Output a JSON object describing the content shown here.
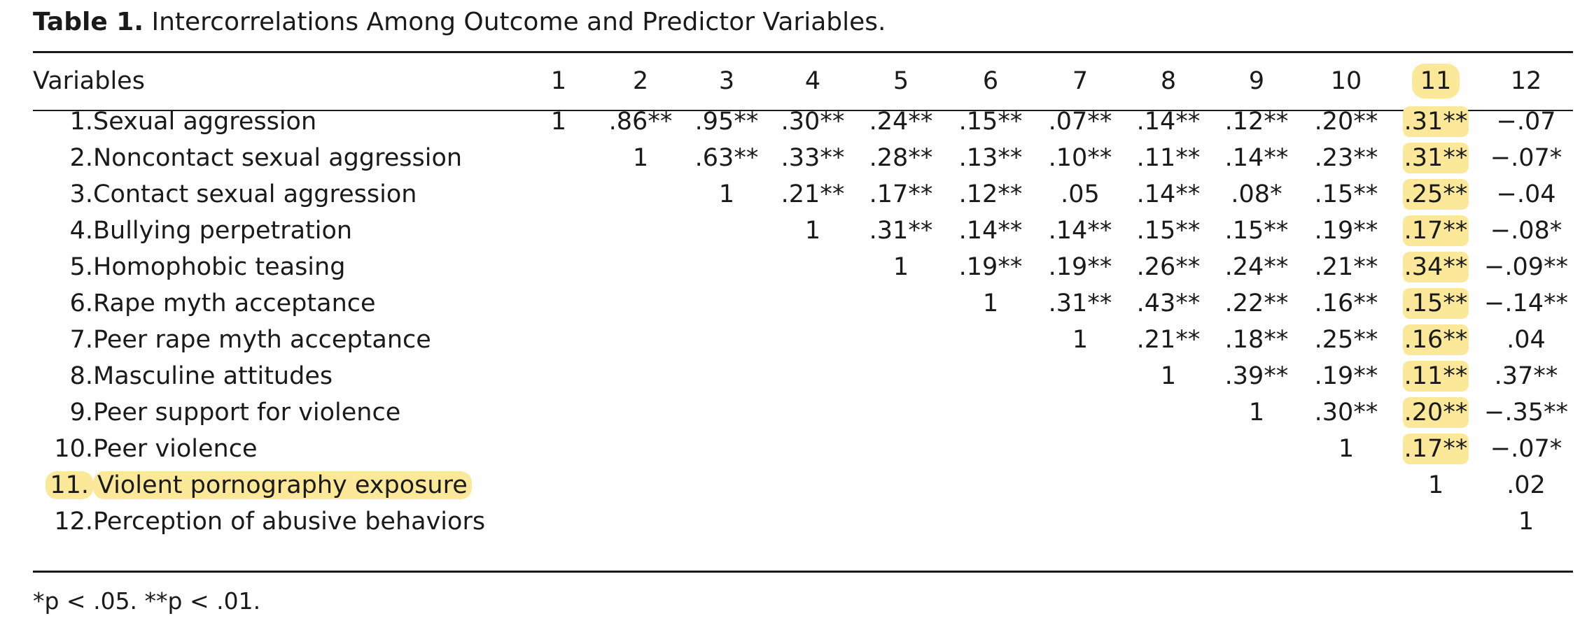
{
  "caption": {
    "label": "Table 1.",
    "title": "Intercorrelations Among Outcome and Predictor Variables."
  },
  "table": {
    "variables_header": "Variables",
    "column_headers": [
      "1",
      "2",
      "3",
      "4",
      "5",
      "6",
      "7",
      "8",
      "9",
      "10",
      "11",
      "12"
    ],
    "highlighted_column": 11,
    "highlighted_row": 11,
    "highlight_color": "#fbe898",
    "rows": [
      {
        "num": "1.",
        "name": "Sexual aggression",
        "cells": [
          "1",
          ".86**",
          ".95**",
          ".30**",
          ".24**",
          ".15**",
          ".07**",
          ".14**",
          ".12**",
          ".20**",
          ".31**",
          "−.07"
        ]
      },
      {
        "num": "2.",
        "name": "Noncontact sexual aggression",
        "cells": [
          "",
          "1",
          ".63**",
          ".33**",
          ".28**",
          ".13**",
          ".10**",
          ".11**",
          ".14**",
          ".23**",
          ".31**",
          "−.07*"
        ]
      },
      {
        "num": "3.",
        "name": "Contact sexual aggression",
        "cells": [
          "",
          "",
          "1",
          ".21**",
          ".17**",
          ".12**",
          ".05",
          ".14**",
          ".08*",
          ".15**",
          ".25**",
          "−.04"
        ]
      },
      {
        "num": "4.",
        "name": "Bullying perpetration",
        "cells": [
          "",
          "",
          "",
          "1",
          ".31**",
          ".14**",
          ".14**",
          ".15**",
          ".15**",
          ".19**",
          ".17**",
          "−.08*"
        ]
      },
      {
        "num": "5.",
        "name": "Homophobic teasing",
        "cells": [
          "",
          "",
          "",
          "",
          "1",
          ".19**",
          ".19**",
          ".26**",
          ".24**",
          ".21**",
          ".34**",
          "−.09**"
        ]
      },
      {
        "num": "6.",
        "name": "Rape myth acceptance",
        "cells": [
          "",
          "",
          "",
          "",
          "",
          "1",
          ".31**",
          ".43**",
          ".22**",
          ".16**",
          ".15**",
          "−.14**"
        ]
      },
      {
        "num": "7.",
        "name": "Peer rape myth acceptance",
        "cells": [
          "",
          "",
          "",
          "",
          "",
          "",
          "1",
          ".21**",
          ".18**",
          ".25**",
          ".16**",
          ".04"
        ]
      },
      {
        "num": "8.",
        "name": "Masculine attitudes",
        "cells": [
          "",
          "",
          "",
          "",
          "",
          "",
          "",
          "1",
          ".39**",
          ".19**",
          ".11**",
          ".37**"
        ]
      },
      {
        "num": "9.",
        "name": "Peer support for violence",
        "cells": [
          "",
          "",
          "",
          "",
          "",
          "",
          "",
          "",
          "1",
          ".30**",
          ".20**",
          "−.35**"
        ]
      },
      {
        "num": "10.",
        "name": "Peer violence",
        "cells": [
          "",
          "",
          "",
          "",
          "",
          "",
          "",
          "",
          "",
          "1",
          ".17**",
          "−.07*"
        ]
      },
      {
        "num": "11.",
        "name": "Violent pornography exposure",
        "cells": [
          "",
          "",
          "",
          "",
          "",
          "",
          "",
          "",
          "",
          "",
          "1",
          ".02"
        ]
      },
      {
        "num": "12.",
        "name": "Perception of abusive behaviors",
        "cells": [
          "",
          "",
          "",
          "",
          "",
          "",
          "",
          "",
          "",
          "",
          "",
          "1"
        ]
      }
    ]
  },
  "note": "*p < .05. **p < .01."
}
